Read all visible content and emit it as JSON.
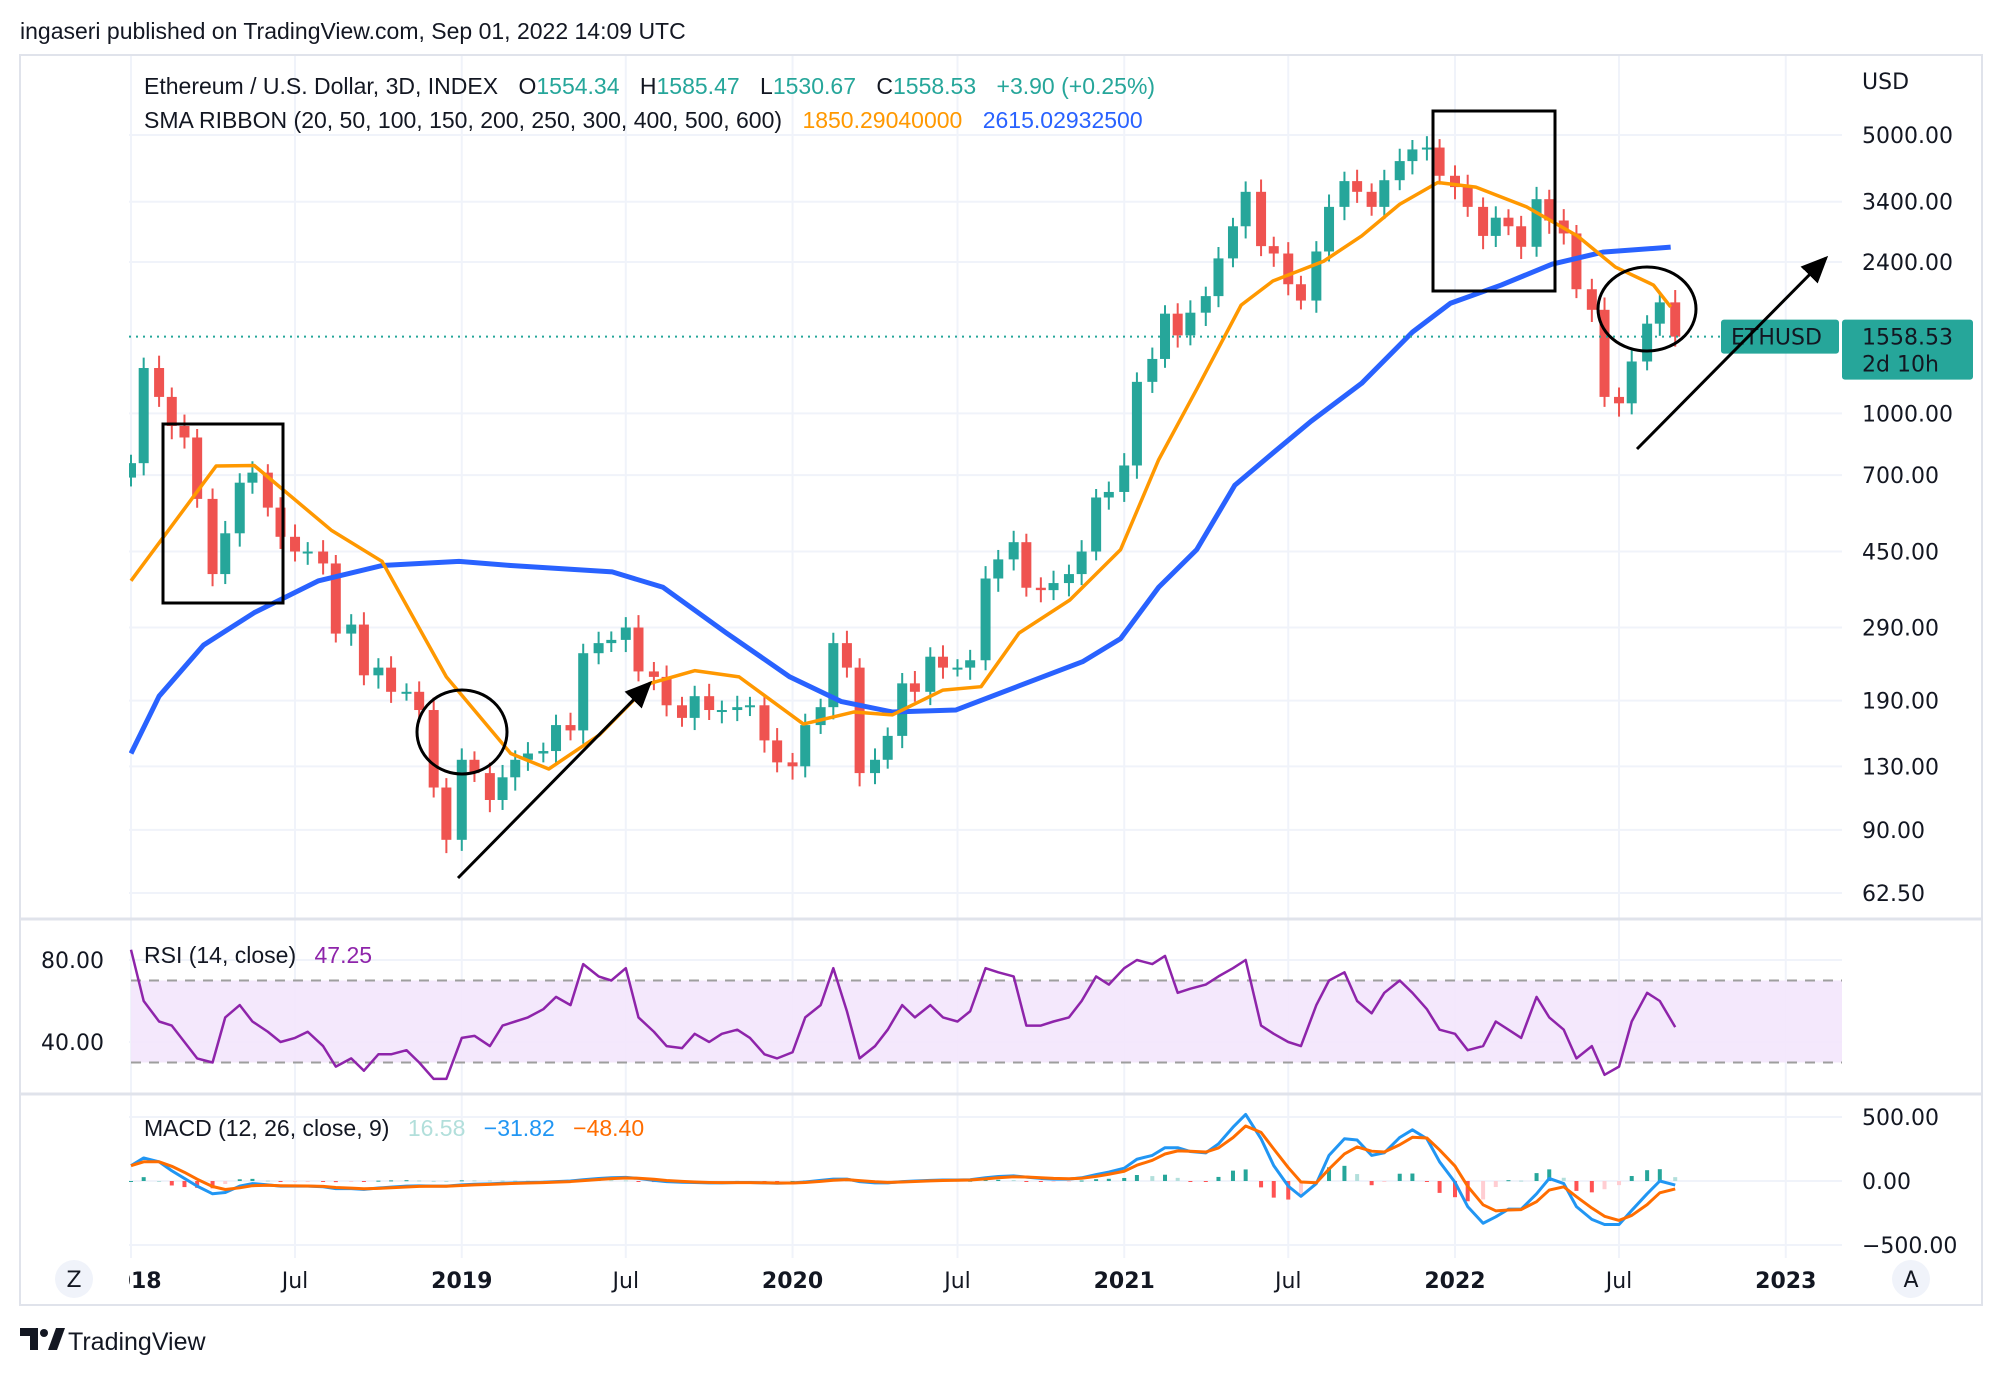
{
  "header": {
    "published": "ingaseri published on TradingView.com, Sep 01, 2022 14:09 UTC"
  },
  "legend": {
    "symbol": "Ethereum / U.S. Dollar, 3D, INDEX",
    "o_label": "O",
    "o": "1554.34",
    "h_label": "H",
    "h": "1585.47",
    "l_label": "L",
    "l": "1530.67",
    "c_label": "C",
    "c": "1558.53",
    "change": "+3.90 (+0.25%)",
    "sma_label": "SMA RIBBON (20, 50, 100, 150, 200, 250, 300, 400, 500, 600)",
    "sma_val1": "1850.29040000",
    "sma_val2": "2615.02932500"
  },
  "price_axis": {
    "unit": "USD",
    "ticks": [
      "5000.00",
      "3400.00",
      "2400.00",
      "1000.00",
      "700.00",
      "450.00",
      "290.00",
      "190.00",
      "130.00",
      "90.00",
      "62.50"
    ],
    "scale": "log"
  },
  "last_price": {
    "symbol": "ETHUSD",
    "price": "1558.53",
    "countdown": "2d 10h"
  },
  "time_axis": {
    "ticks": [
      "2018",
      "Jul",
      "2019",
      "Jul",
      "2020",
      "Jul",
      "2021",
      "Jul",
      "2022",
      "Jul",
      "2023"
    ],
    "bold": [
      true,
      false,
      true,
      false,
      true,
      false,
      true,
      false,
      true,
      false,
      true
    ]
  },
  "buttons": {
    "zoom": "Z",
    "auto": "A"
  },
  "rsi": {
    "label": "RSI (14, close)",
    "value": "47.25",
    "ticks": [
      "80.00",
      "40.00"
    ],
    "bands": [
      70,
      30
    ]
  },
  "macd": {
    "label": "MACD (12, 26, close, 9)",
    "hist": "16.58",
    "macd": "−31.82",
    "signal": "−48.40",
    "ticks": [
      "500.00",
      "0.00",
      "−500.00"
    ]
  },
  "logo": {
    "text": "TradingView"
  },
  "colors": {
    "up": "#26a69a",
    "down": "#ef5350",
    "sma_orange": "#ff9800",
    "sma_blue": "#2962ff",
    "rsi": "#8e24aa",
    "macd": "#2196f3",
    "signal": "#ff6d00"
  },
  "chart_data": {
    "type": "candlestick",
    "yscale": "log",
    "ylim": [
      62.5,
      5000
    ],
    "dates": [
      "2018-01-01",
      "2018-01-15",
      "2018-02-01",
      "2018-02-15",
      "2018-03-01",
      "2018-03-15",
      "2018-04-01",
      "2018-04-15",
      "2018-05-01",
      "2018-05-15",
      "2018-06-01",
      "2018-06-15",
      "2018-07-01",
      "2018-07-15",
      "2018-08-01",
      "2018-08-15",
      "2018-09-01",
      "2018-09-15",
      "2018-10-01",
      "2018-10-15",
      "2018-11-01",
      "2018-11-15",
      "2018-12-01",
      "2018-12-15",
      "2019-01-01",
      "2019-01-15",
      "2019-02-01",
      "2019-02-15",
      "2019-03-01",
      "2019-03-15",
      "2019-04-01",
      "2019-04-15",
      "2019-05-01",
      "2019-05-15",
      "2019-06-01",
      "2019-06-15",
      "2019-07-01",
      "2019-07-15",
      "2019-08-01",
      "2019-08-15",
      "2019-09-01",
      "2019-09-15",
      "2019-10-01",
      "2019-10-15",
      "2019-11-01",
      "2019-11-15",
      "2019-12-01",
      "2019-12-15",
      "2020-01-01",
      "2020-01-15",
      "2020-02-01",
      "2020-02-15",
      "2020-03-01",
      "2020-03-15",
      "2020-04-01",
      "2020-04-15",
      "2020-05-01",
      "2020-05-15",
      "2020-06-01",
      "2020-06-15",
      "2020-07-01",
      "2020-07-15",
      "2020-08-01",
      "2020-08-15",
      "2020-09-01",
      "2020-09-15",
      "2020-10-01",
      "2020-10-15",
      "2020-11-01",
      "2020-11-15",
      "2020-12-01",
      "2020-12-15",
      "2021-01-01",
      "2021-01-15",
      "2021-02-01",
      "2021-02-15",
      "2021-03-01",
      "2021-03-15",
      "2021-04-01",
      "2021-04-15",
      "2021-05-01",
      "2021-05-15",
      "2021-06-01",
      "2021-06-15",
      "2021-07-01",
      "2021-07-15",
      "2021-08-01",
      "2021-08-15",
      "2021-09-01",
      "2021-09-15",
      "2021-10-01",
      "2021-10-15",
      "2021-11-01",
      "2021-11-15",
      "2021-12-01",
      "2021-12-15",
      "2022-01-01",
      "2022-01-15",
      "2022-02-01",
      "2022-02-15",
      "2022-03-01",
      "2022-03-15",
      "2022-04-01",
      "2022-04-15",
      "2022-05-01",
      "2022-05-15",
      "2022-06-01",
      "2022-06-15",
      "2022-07-01",
      "2022-07-15",
      "2022-08-01",
      "2022-08-15",
      "2022-09-01"
    ],
    "close": [
      750,
      1300,
      1100,
      930,
      870,
      610,
      395,
      500,
      670,
      710,
      580,
      490,
      450,
      450,
      420,
      280,
      295,
      220,
      230,
      200,
      200,
      180,
      115,
      85,
      135,
      125,
      107,
      122,
      135,
      140,
      142,
      165,
      160,
      250,
      265,
      270,
      290,
      225,
      218,
      185,
      172,
      195,
      180,
      180,
      183,
      185,
      151,
      133,
      130,
      165,
      183,
      265,
      230,
      125,
      135,
      155,
      210,
      200,
      245,
      230,
      230,
      240,
      385,
      430,
      475,
      365,
      360,
      375,
      395,
      450,
      615,
      635,
      740,
      1200,
      1370,
      1780,
      1570,
      1790,
      1970,
      2450,
      2950,
      3600,
      2630,
      2520,
      2110,
      1920,
      2550,
      3300,
      3830,
      3600,
      3300,
      3850,
      4300,
      4600,
      4650,
      3950,
      3700,
      3300,
      2790,
      3100,
      2950,
      2620,
      3450,
      3050,
      2830,
      2050,
      1820,
      1100,
      1060,
      1350,
      1680,
      1900,
      1558.53
    ],
    "sma_orange": [
      [
        "2018-01-01",
        380
      ],
      [
        "2018-04-05",
        738
      ],
      [
        "2018-05-17",
        740
      ],
      [
        "2018-08-10",
        509
      ],
      [
        "2018-10-05",
        425
      ],
      [
        "2018-12-15",
        218
      ],
      [
        "2019-02-24",
        140
      ],
      [
        "2019-04-07",
        128
      ],
      [
        "2019-06-02",
        156
      ],
      [
        "2019-07-28",
        210
      ],
      [
        "2019-09-15",
        226
      ],
      [
        "2019-11-03",
        218
      ],
      [
        "2020-01-13",
        166
      ],
      [
        "2020-03-09",
        178
      ],
      [
        "2020-04-20",
        175
      ],
      [
        "2020-06-15",
        202
      ],
      [
        "2020-07-27",
        206
      ],
      [
        "2020-09-07",
        281
      ],
      [
        "2020-11-02",
        340
      ],
      [
        "2020-12-28",
        455
      ],
      [
        "2021-02-08",
        765
      ],
      [
        "2021-03-22",
        1150
      ],
      [
        "2021-05-10",
        1870
      ],
      [
        "2021-06-14",
        2150
      ],
      [
        "2021-08-09",
        2410
      ],
      [
        "2021-09-20",
        2790
      ],
      [
        "2021-11-01",
        3350
      ],
      [
        "2021-12-13",
        3800
      ],
      [
        "2022-01-24",
        3700
      ],
      [
        "2022-03-21",
        3300
      ],
      [
        "2022-05-16",
        2790
      ],
      [
        "2022-06-27",
        2330
      ],
      [
        "2022-08-08",
        2100
      ],
      [
        "2022-08-27",
        1850.29
      ]
    ],
    "sma_blue": [
      [
        "2018-01-01",
        140
      ],
      [
        "2018-02-01",
        195
      ],
      [
        "2018-03-22",
        262
      ],
      [
        "2018-05-17",
        316
      ],
      [
        "2018-07-27",
        380
      ],
      [
        "2018-10-05",
        415
      ],
      [
        "2018-12-29",
        425
      ],
      [
        "2019-02-24",
        415
      ],
      [
        "2019-06-16",
        400
      ],
      [
        "2019-08-11",
        366
      ],
      [
        "2019-10-20",
        281
      ],
      [
        "2019-12-29",
        218
      ],
      [
        "2020-02-24",
        189
      ],
      [
        "2020-04-20",
        178
      ],
      [
        "2020-06-29",
        180
      ],
      [
        "2020-09-07",
        207
      ],
      [
        "2020-11-16",
        238
      ],
      [
        "2020-12-28",
        272
      ],
      [
        "2021-02-08",
        366
      ],
      [
        "2021-03-22",
        455
      ],
      [
        "2021-05-03",
        660
      ],
      [
        "2021-06-14",
        795
      ],
      [
        "2021-07-26",
        955
      ],
      [
        "2021-09-20",
        1190
      ],
      [
        "2021-11-15",
        1600
      ],
      [
        "2021-12-27",
        1890
      ],
      [
        "2022-02-21",
        2100
      ],
      [
        "2022-04-18",
        2370
      ],
      [
        "2022-06-13",
        2540
      ],
      [
        "2022-08-27",
        2615.03
      ]
    ],
    "rsi": [
      85,
      60,
      50,
      48,
      40,
      32,
      30,
      52,
      58,
      50,
      45,
      40,
      42,
      45,
      38,
      28,
      32,
      26,
      34,
      34,
      36,
      30,
      22,
      22,
      42,
      43,
      38,
      48,
      50,
      52,
      56,
      62,
      58,
      78,
      72,
      70,
      76,
      52,
      45,
      38,
      37,
      44,
      40,
      44,
      46,
      42,
      34,
      32,
      35,
      52,
      58,
      76,
      55,
      32,
      38,
      46,
      58,
      52,
      58,
      52,
      50,
      55,
      76,
      74,
      72,
      48,
      48,
      50,
      52,
      60,
      72,
      68,
      76,
      80,
      78,
      82,
      64,
      66,
      68,
      72,
      76,
      80,
      48,
      44,
      40,
      38,
      58,
      70,
      74,
      60,
      54,
      64,
      70,
      64,
      56,
      46,
      44,
      36,
      38,
      50,
      46,
      42,
      62,
      52,
      46,
      32,
      38,
      24,
      28,
      50,
      64,
      60,
      47.25
    ],
    "macd_line": [
      120,
      180,
      150,
      80,
      20,
      -40,
      -100,
      -90,
      -40,
      -20,
      -30,
      -40,
      -40,
      -40,
      -45,
      -60,
      -60,
      -65,
      -55,
      -48,
      -40,
      -38,
      -40,
      -40,
      -30,
      -25,
      -22,
      -18,
      -15,
      -12,
      -10,
      -5,
      0,
      10,
      20,
      25,
      28,
      20,
      5,
      -5,
      -10,
      -12,
      -15,
      -15,
      -12,
      -12,
      -15,
      -18,
      -15,
      -8,
      5,
      15,
      15,
      -5,
      -15,
      -15,
      -5,
      0,
      5,
      8,
      8,
      10,
      25,
      35,
      40,
      30,
      20,
      15,
      15,
      25,
      50,
      70,
      100,
      170,
      200,
      260,
      260,
      230,
      220,
      290,
      420,
      520,
      330,
      120,
      -40,
      -120,
      -20,
      200,
      330,
      320,
      200,
      220,
      340,
      400,
      330,
      150,
      -10,
      -200,
      -330,
      -280,
      -220,
      -220,
      -100,
      20,
      -20,
      -200,
      -300,
      -340,
      -340,
      -230,
      -100,
      0,
      -31.82
    ],
    "macd_ylim": [
      -500,
      500
    ],
    "rsi_ylim": [
      20,
      90
    ]
  }
}
